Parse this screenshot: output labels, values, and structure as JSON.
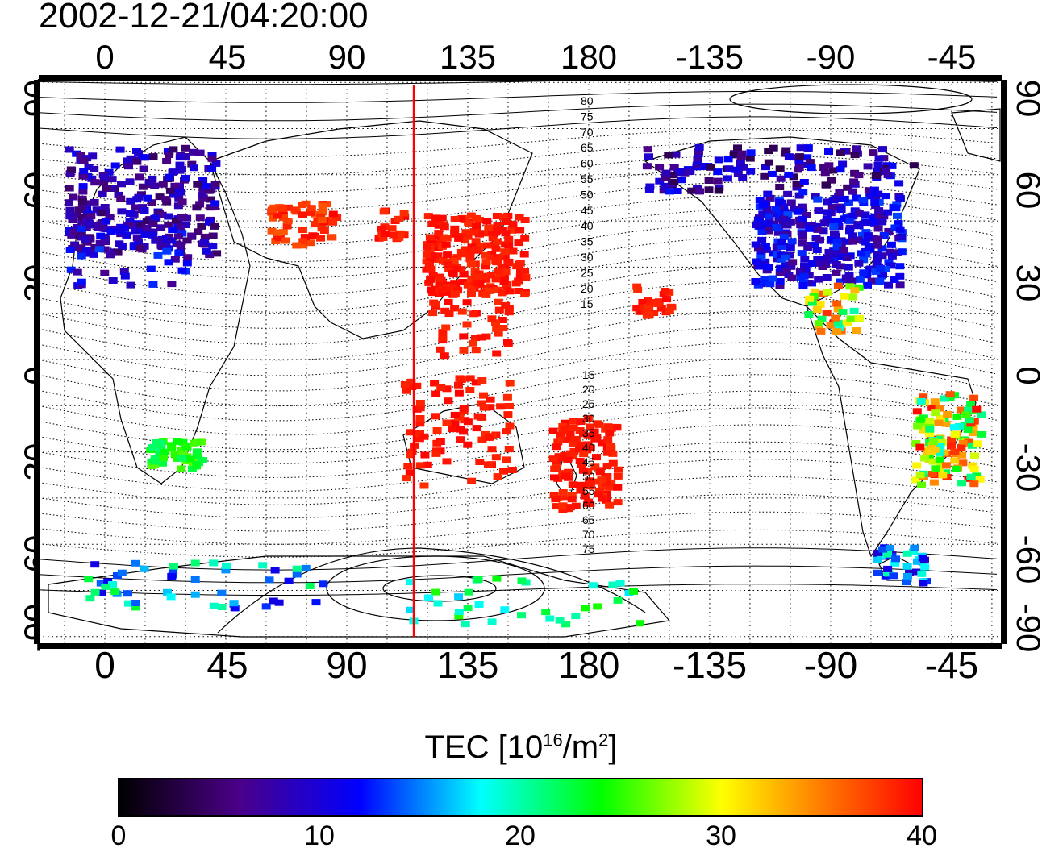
{
  "title": "2002-12-21/04:20:00",
  "axes": {
    "lon_ticks": [
      "0",
      "45",
      "90",
      "135",
      "180",
      "-135",
      "-90",
      "-45"
    ],
    "lat_ticks": [
      "90",
      "60",
      "30",
      "0",
      "-30",
      "-60",
      "-90"
    ]
  },
  "contour_labels": {
    "north": [
      "80",
      "75",
      "70",
      "65",
      "60",
      "55",
      "50",
      "45",
      "40",
      "35",
      "30",
      "25",
      "20",
      "15"
    ],
    "south": [
      "15",
      "20",
      "25",
      "30",
      "35",
      "40",
      "45",
      "50",
      "55",
      "60",
      "65",
      "70",
      "75"
    ]
  },
  "colorbar": {
    "title_prefix": "TEC  [10",
    "title_exp": "16",
    "title_unit": "/m",
    "title_exp2": "2",
    "title_suffix": "]",
    "min": 0,
    "max": 40,
    "tick_labels": [
      "0",
      "10",
      "20",
      "30",
      "40"
    ],
    "colors": [
      "#000000",
      "#4b0088",
      "#0000ff",
      "#00ffff",
      "#00ff00",
      "#ffff00",
      "#ff8000",
      "#ff0000"
    ]
  },
  "meridian_line_color": "#ff0000",
  "meridian_lon": 115
}
